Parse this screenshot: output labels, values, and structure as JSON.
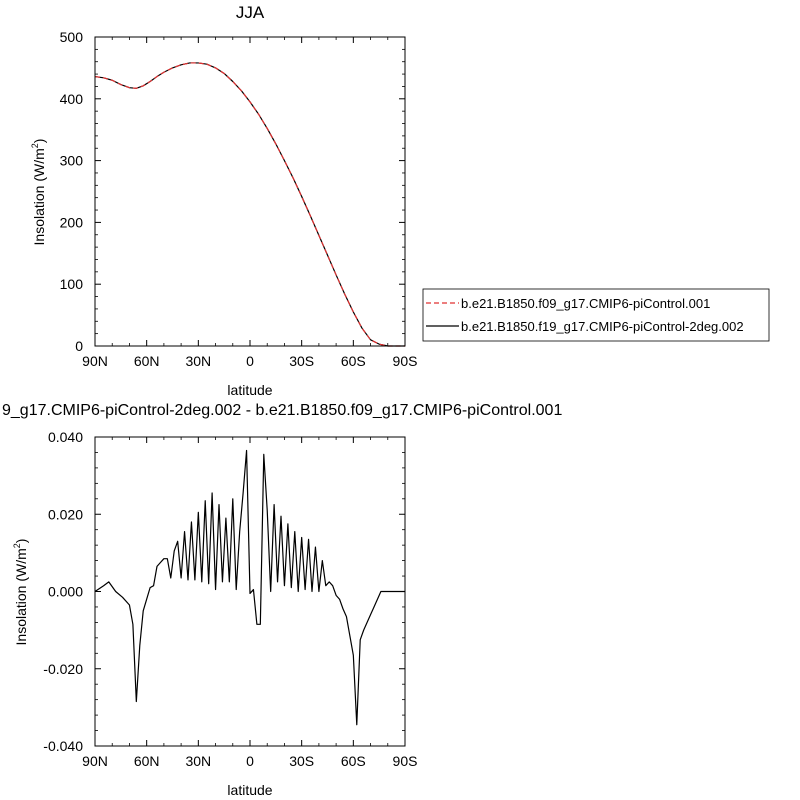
{
  "chart_data": [
    {
      "type": "line",
      "title": "JJA",
      "xlabel": "latitude",
      "ylabel": "Insolation (W/m",
      "ylabel_sup": "2",
      "ylabel_close": ")",
      "x_ticks": [
        {
          "value": 90,
          "label": "90N"
        },
        {
          "value": 60,
          "label": "60N"
        },
        {
          "value": 30,
          "label": "30N"
        },
        {
          "value": 0,
          "label": "0"
        },
        {
          "value": -30,
          "label": "30S"
        },
        {
          "value": -60,
          "label": "60S"
        },
        {
          "value": -90,
          "label": "90S"
        }
      ],
      "y_ticks": [
        {
          "value": 0,
          "label": "0"
        },
        {
          "value": 100,
          "label": "100"
        },
        {
          "value": 200,
          "label": "200"
        },
        {
          "value": 300,
          "label": "300"
        },
        {
          "value": 400,
          "label": "400"
        },
        {
          "value": 500,
          "label": "500"
        }
      ],
      "xlim": [
        90,
        -90
      ],
      "ylim": [
        0,
        500
      ],
      "legend_position": "right",
      "series": [
        {
          "name": "b.e21.B1850.f09_g17.CMIP6-piControl.001",
          "color": "#e03030",
          "dash": "dashed",
          "x": [
            90,
            85,
            80,
            75,
            70,
            66,
            62,
            58,
            54,
            50,
            45,
            40,
            35,
            30,
            25,
            20,
            15,
            10,
            5,
            0,
            -5,
            -10,
            -15,
            -20,
            -25,
            -30,
            -35,
            -40,
            -45,
            -50,
            -55,
            -60,
            -65,
            -70,
            -75,
            -80,
            -85,
            -90
          ],
          "y": [
            436,
            434,
            430,
            423,
            418,
            417,
            421,
            428,
            436,
            443,
            450,
            455,
            458,
            458,
            456,
            450,
            441,
            428,
            413,
            395,
            375,
            352,
            327,
            300,
            272,
            242,
            211,
            179,
            147,
            115,
            84,
            55,
            29,
            10,
            3,
            0,
            0,
            0
          ]
        },
        {
          "name": "b.e21.B1850.f19_g17.CMIP6-piControl-2deg.002",
          "color": "#000000",
          "dash": "solid",
          "x": [
            90,
            85,
            80,
            75,
            70,
            66,
            62,
            58,
            54,
            50,
            45,
            40,
            35,
            30,
            25,
            20,
            15,
            10,
            5,
            0,
            -5,
            -10,
            -15,
            -20,
            -25,
            -30,
            -35,
            -40,
            -45,
            -50,
            -55,
            -60,
            -65,
            -70,
            -75,
            -80,
            -85,
            -90
          ],
          "y": [
            436,
            434,
            430,
            423,
            418,
            417,
            421,
            428,
            436,
            443,
            450,
            455,
            458,
            458,
            456,
            450,
            441,
            428,
            413,
            395,
            375,
            352,
            327,
            300,
            272,
            242,
            211,
            179,
            147,
            115,
            84,
            55,
            29,
            10,
            3,
            0,
            0,
            0
          ]
        }
      ]
    },
    {
      "type": "line",
      "title": "9_g17.CMIP6-piControl-2deg.002 - b.e21.B1850.f09_g17.CMIP6-piControl.001",
      "xlabel": "latitude",
      "ylabel": "Insolation (W/m",
      "ylabel_sup": "2",
      "ylabel_close": ")",
      "x_ticks": [
        {
          "value": 90,
          "label": "90N"
        },
        {
          "value": 60,
          "label": "60N"
        },
        {
          "value": 30,
          "label": "30N"
        },
        {
          "value": 0,
          "label": "0"
        },
        {
          "value": -30,
          "label": "30S"
        },
        {
          "value": -60,
          "label": "60S"
        },
        {
          "value": -90,
          "label": "90S"
        }
      ],
      "y_ticks": [
        {
          "value": -0.04,
          "label": "-0.040"
        },
        {
          "value": -0.02,
          "label": "-0.020"
        },
        {
          "value": 0,
          "label": "0.000"
        },
        {
          "value": 0.02,
          "label": "0.020"
        },
        {
          "value": 0.04,
          "label": "0.040"
        }
      ],
      "xlim": [
        90,
        -90
      ],
      "ylim": [
        -0.04,
        0.04
      ],
      "series": [
        {
          "color": "#000000",
          "x": [
            90,
            85,
            82,
            78,
            74,
            70,
            68,
            66,
            64,
            62,
            60,
            58,
            56,
            54,
            52,
            50,
            48,
            46,
            44,
            42,
            40,
            38,
            36,
            34,
            32,
            30,
            28,
            26,
            24,
            22,
            20,
            18,
            16,
            14,
            12,
            10,
            8,
            6,
            4,
            2,
            0,
            -2,
            -4,
            -6,
            -8,
            -10,
            -12,
            -14,
            -16,
            -18,
            -20,
            -22,
            -24,
            -26,
            -28,
            -30,
            -32,
            -34,
            -36,
            -38,
            -40,
            -42,
            -44,
            -46,
            -48,
            -50,
            -52,
            -54,
            -56,
            -58,
            -60,
            -62,
            -64,
            -66,
            -68,
            -70,
            -72,
            -74,
            -76,
            -80,
            -85,
            -90
          ],
          "y": [
            0.0,
            0.0015,
            0.0025,
            0.0,
            -0.0015,
            -0.0035,
            -0.0085,
            -0.0285,
            -0.014,
            -0.005,
            -0.002,
            0.001,
            0.0015,
            0.0065,
            0.0075,
            0.0085,
            0.0085,
            0.0035,
            0.0105,
            0.013,
            0.0035,
            0.0155,
            0.003,
            0.018,
            0.003,
            0.0205,
            0.0025,
            0.0235,
            0.002,
            0.0255,
            0.0005,
            0.0225,
            0.0025,
            0.019,
            0.0025,
            0.024,
            0.0005,
            0.0155,
            0.0255,
            0.0365,
            -0.0005,
            0.0005,
            -0.0085,
            -0.0085,
            0.0355,
            0.021,
            0.0,
            0.0225,
            0.0025,
            0.0195,
            0.0015,
            0.0175,
            0.001,
            0.0155,
            0.0,
            0.014,
            0.0005,
            0.0135,
            0.0,
            0.0115,
            0.0,
            0.008,
            0.0015,
            0.0025,
            0.0015,
            -0.001,
            -0.002,
            -0.0045,
            -0.0065,
            -0.0115,
            -0.0165,
            -0.0345,
            -0.0125,
            -0.01,
            -0.008,
            -0.006,
            -0.004,
            -0.002,
            0.0,
            0.0,
            0.0,
            0.0
          ]
        }
      ]
    }
  ]
}
